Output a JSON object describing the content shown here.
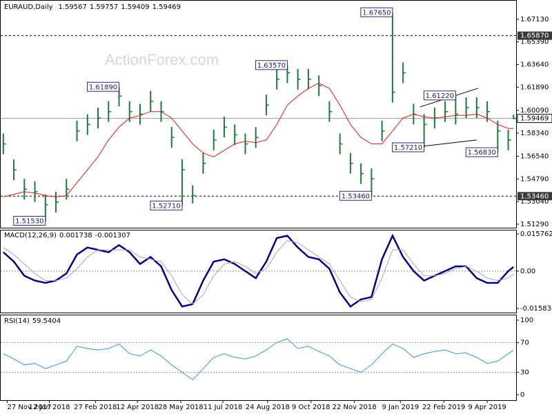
{
  "chart_data": [
    {
      "type": "ohlc",
      "title": "EURAUD,Daily",
      "last_open": 1.59567,
      "watermark": "ActionForex.com",
      "x": [
        0,
        8,
        16,
        24,
        32,
        40,
        48,
        56,
        64,
        72,
        80,
        88,
        96,
        104,
        112,
        120,
        128,
        136,
        144,
        152,
        160,
        168,
        176,
        184,
        192,
        200,
        208,
        216,
        224,
        232,
        240,
        248,
        256,
        264,
        272,
        280,
        288,
        296,
        304,
        312,
        320,
        328,
        336,
        344,
        352,
        360,
        368,
        376,
        384,
        388
      ],
      "xlim": [
        -2,
        390
      ],
      "xticks": [
        {
          "value": 3,
          "label": "27 Nov 2017"
        },
        {
          "value": 35,
          "label": "12 Jan 2018"
        },
        {
          "value": 70,
          "label": "27 Feb 2018"
        },
        {
          "value": 102,
          "label": "12 Apr 2018"
        },
        {
          "value": 135,
          "label": "28 May 2018"
        },
        {
          "value": 167,
          "label": "11 Jul 2018"
        },
        {
          "value": 201,
          "label": "24 Aug 2018"
        },
        {
          "value": 234,
          "label": "9 Oct 2018"
        },
        {
          "value": 267,
          "label": "22 Nov 2018"
        },
        {
          "value": 302,
          "label": "9 Jan 2019"
        },
        {
          "value": 335,
          "label": "22 Feb 2019"
        },
        {
          "value": 368,
          "label": "9 Apr 2019"
        }
      ],
      "high": [
        1.583,
        1.563,
        1.548,
        1.546,
        1.536,
        1.538,
        1.548,
        1.593,
        1.598,
        1.603,
        1.608,
        1.6189,
        1.608,
        1.606,
        1.616,
        1.608,
        1.588,
        1.563,
        1.543,
        1.568,
        1.586,
        1.596,
        1.59,
        1.583,
        1.588,
        1.613,
        1.633,
        1.6357,
        1.633,
        1.633,
        1.628,
        1.608,
        1.583,
        1.568,
        1.56,
        1.556,
        1.593,
        1.6765,
        1.638,
        1.606,
        1.598,
        1.603,
        1.608,
        1.6122,
        1.611,
        1.611,
        1.608,
        1.593,
        1.586,
        1.59757
      ],
      "low": [
        1.567,
        1.547,
        1.532,
        1.53,
        1.5153,
        1.522,
        1.532,
        1.577,
        1.582,
        1.587,
        1.592,
        1.604,
        1.592,
        1.59,
        1.6,
        1.592,
        1.572,
        1.5271,
        1.529,
        1.552,
        1.57,
        1.58,
        1.574,
        1.567,
        1.572,
        1.597,
        1.617,
        1.622,
        1.617,
        1.617,
        1.612,
        1.592,
        1.567,
        1.552,
        1.544,
        1.5346,
        1.577,
        1.607,
        1.622,
        1.59,
        1.5721,
        1.587,
        1.592,
        1.59,
        1.595,
        1.595,
        1.592,
        1.5683,
        1.57,
        1.59409
      ],
      "close": [
        1.575,
        1.555,
        1.54,
        1.538,
        1.528,
        1.53,
        1.54,
        1.585,
        1.59,
        1.595,
        1.6,
        1.612,
        1.6,
        1.598,
        1.608,
        1.6,
        1.58,
        1.555,
        1.535,
        1.56,
        1.578,
        1.588,
        1.582,
        1.575,
        1.58,
        1.605,
        1.625,
        1.63,
        1.625,
        1.625,
        1.62,
        1.6,
        1.575,
        1.56,
        1.552,
        1.548,
        1.585,
        1.615,
        1.63,
        1.598,
        1.59,
        1.595,
        1.6,
        1.598,
        1.603,
        1.603,
        1.6,
        1.585,
        1.578,
        1.59469
      ],
      "color": "#1d7a3a",
      "series": [
        {
          "color": "#d81b1b",
          "values": [
            1.534,
            1.536,
            1.538,
            1.537,
            1.535,
            1.534,
            1.535,
            1.545,
            1.555,
            1.565,
            1.578,
            1.588,
            1.595,
            1.597,
            1.6,
            1.6,
            1.595,
            1.585,
            1.575,
            1.568,
            1.565,
            1.57,
            1.575,
            1.577,
            1.576,
            1.578,
            1.59,
            1.605,
            1.612,
            1.618,
            1.622,
            1.618,
            1.605,
            1.59,
            1.58,
            1.575,
            1.575,
            1.585,
            1.595,
            1.598,
            1.596,
            1.595,
            1.596,
            1.597,
            1.597,
            1.598,
            1.595,
            1.59,
            1.587,
            1.587
          ]
        }
      ],
      "ylim": [
        1.5102,
        1.6852
      ],
      "yticks": [
        {
          "value": 1.6713,
          "label": "1.67130"
        },
        {
          "value": 1.6539,
          "label": "1.65390"
        },
        {
          "value": 1.6364,
          "label": "1.63640"
        },
        {
          "value": 1.6189,
          "label": "1.61890"
        },
        {
          "value": 1.6009,
          "label": "1.60090"
        },
        {
          "value": 1.5834,
          "label": "1.58340"
        },
        {
          "value": 1.5654,
          "label": "1.56540"
        },
        {
          "value": 1.5479,
          "label": "1.54790"
        },
        {
          "value": 1.5304,
          "label": "1.53040"
        },
        {
          "value": 1.5129,
          "label": "1.51290"
        }
      ],
      "levels": [
        {
          "value": 1.6587,
          "label": "1.65870"
        },
        {
          "value": 1.5346,
          "label": "1.53460"
        }
      ],
      "annotations": [
        {
          "x": 32,
          "value": 1.5153,
          "label": "1.51530"
        },
        {
          "x": 88,
          "value": 1.6189,
          "label": "1.61890"
        },
        {
          "x": 136,
          "value": 1.5271,
          "label": "1.52710"
        },
        {
          "x": 216,
          "value": 1.6357,
          "label": "1.63570"
        },
        {
          "x": 280,
          "value": 1.5346,
          "label": "1.53460"
        },
        {
          "x": 296,
          "value": 1.6765,
          "label": "1.67650"
        },
        {
          "x": 320,
          "value": 1.5721,
          "label": "1.57210"
        },
        {
          "x": 344,
          "value": 1.6122,
          "label": "1.61220"
        },
        {
          "x": 376,
          "value": 1.5683,
          "label": "1.56830"
        }
      ],
      "trendlines": [
        {
          "x": [
            317,
            361
          ],
          "y": [
            1.6036,
            1.618
          ]
        },
        {
          "x": [
            319,
            360
          ],
          "y": [
            1.5732,
            1.578
          ]
        }
      ]
    },
    {
      "type": "line",
      "title": "MACD(12,26,9)",
      "series": [
        {
          "color": "#00007f",
          "values": [
            0.008,
            0.004,
            -0.002,
            -0.004,
            -0.005,
            -0.004,
            -0.001,
            0.007,
            0.01,
            0.009,
            0.008,
            0.011,
            0.008,
            0.003,
            0.006,
            0.002,
            -0.008,
            -0.015,
            -0.014,
            -0.004,
            0.004,
            0.005,
            0.003,
            0.0,
            -0.003,
            0.004,
            0.014,
            0.015,
            0.01,
            0.006,
            0.005,
            0.001,
            -0.009,
            -0.015,
            -0.012,
            -0.011,
            0.005,
            0.015,
            0.006,
            0.0,
            -0.004,
            -0.002,
            0.0,
            0.002,
            0.002,
            -0.003,
            -0.005,
            -0.005,
            0.0,
            0.001738
          ]
        },
        {
          "color": "#a8a8a8",
          "values": [
            0.01,
            0.007,
            0.003,
            -0.001,
            -0.004,
            -0.004,
            -0.003,
            0.001,
            0.006,
            0.009,
            0.009,
            0.009,
            0.009,
            0.006,
            0.005,
            0.004,
            -0.002,
            -0.01,
            -0.014,
            -0.01,
            -0.002,
            0.003,
            0.004,
            0.002,
            -0.001,
            0.001,
            0.008,
            0.013,
            0.012,
            0.009,
            0.006,
            0.003,
            -0.004,
            -0.011,
            -0.013,
            -0.012,
            -0.003,
            0.009,
            0.009,
            0.003,
            -0.002,
            -0.002,
            -0.001,
            0.001,
            0.002,
            0.0,
            -0.003,
            -0.004,
            -0.003,
            -0.001307
          ]
        }
      ],
      "ylim": [
        -0.01757,
        0.01721
      ],
      "yticks": [
        0.015762,
        {
          "value": 0,
          "label": "0.00"
        },
        -0.015834
      ],
      "levels": [
        0
      ]
    },
    {
      "type": "line",
      "title": "RSI(14)",
      "series": [
        {
          "color": "#3399cc",
          "values": [
            55,
            48,
            40,
            42,
            35,
            40,
            45,
            65,
            62,
            60,
            62,
            68,
            55,
            52,
            60,
            52,
            40,
            30,
            20,
            35,
            50,
            55,
            50,
            48,
            52,
            60,
            70,
            75,
            62,
            65,
            58,
            52,
            40,
            35,
            30,
            40,
            55,
            68,
            62,
            50,
            55,
            58,
            60,
            55,
            56,
            50,
            42,
            45,
            55,
            59.5404
          ]
        }
      ],
      "ylim": [
        -7.4,
        106.5
      ],
      "yticks": [
        100,
        70,
        30,
        0
      ],
      "levels": [
        70,
        30
      ]
    }
  ]
}
